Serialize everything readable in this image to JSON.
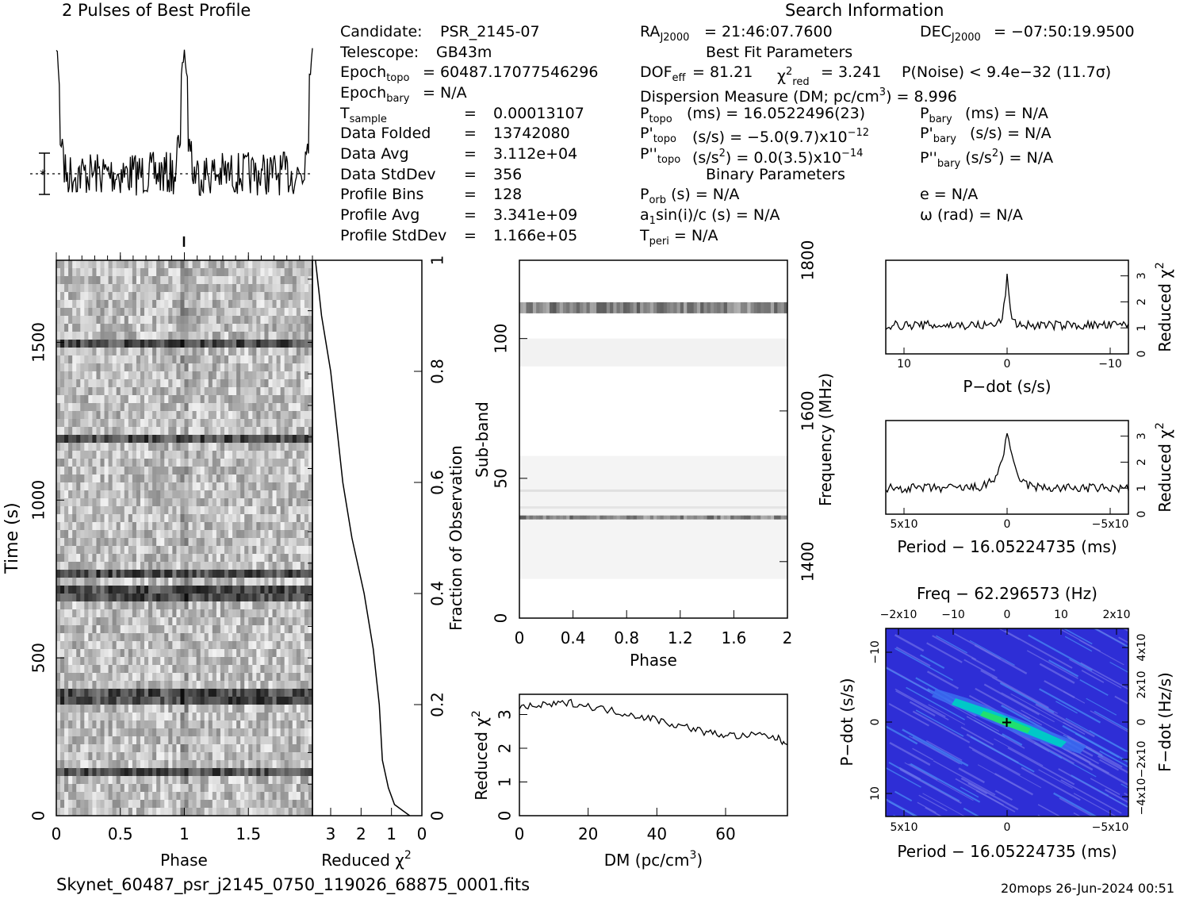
{
  "title_profile": "2 Pulses of Best Profile",
  "title_search": "Search Information",
  "left_info": [
    {
      "k": "Candidate:",
      "v": "PSR_2145-07"
    },
    {
      "k": "Telescope:",
      "v": "GB43m"
    },
    {
      "k": "Epoch_topo",
      "v": "= 60487.17077546296"
    },
    {
      "k": "Epoch_bary",
      "v": "= N/A"
    },
    {
      "k": "T_sample",
      "v": "0.00013107"
    },
    {
      "k": "Data Folded",
      "v": "13742080"
    },
    {
      "k": "Data Avg",
      "v": "3.112e+04"
    },
    {
      "k": "Data StdDev",
      "v": "356"
    },
    {
      "k": "Profile Bins",
      "v": "128"
    },
    {
      "k": "Profile Avg",
      "v": "3.341e+09"
    },
    {
      "k": "Profile StdDev",
      "v": "1.166e+05"
    }
  ],
  "search": {
    "ra": "= 21:46:07.7600",
    "dec": "= −07:50:19.9500",
    "best_fit_header": "Best Fit Parameters",
    "dof": "= 81.21",
    "chi2_red": "= 3.241",
    "pnoise": "P(Noise) < 9.4e−32   (11.7σ)",
    "dm": "Dispersion Measure (DM; pc/cm",
    "dm_value": ") = 8.996",
    "ptopo": "(ms) =  16.0522496(23)",
    "pbary": "(ms) = N/A",
    "pdtopo": "(s/s) = −5.0(9.7)x10",
    "pdtopo_exp": "−12",
    "pdbary": "(s/s) = N/A",
    "pddtopo": "(s/s",
    "pddtopo_val": ") = 0.0(3.5)x10",
    "pddtopo_exp": "−14",
    "pddbary": ") = N/A",
    "binary_header": "Binary Parameters",
    "porb": "(s) = N/A",
    "e": "e = N/A",
    "a1": "sin(i)/c (s) = N/A",
    "omega": "ω (rad) = N/A",
    "tperi": "= N/A"
  },
  "footer_file": "Skynet_60487_psr_j2145_0750_119026_68875_0001.fits",
  "footer_stamp": "20mops 26-Jun-2024 00:51",
  "chart_data": [
    {
      "type": "line",
      "name": "profile",
      "title": "2 Pulses of Best Profile",
      "x_range": [
        0,
        2
      ],
      "note_peaks_at_phase": [
        0.0,
        1.0,
        2.0
      ]
    },
    {
      "type": "heatmap",
      "name": "time-phase",
      "xlabel": "Phase",
      "ylabel": "Time (s)",
      "xlim": [
        0,
        2
      ],
      "ylim": [
        0,
        1760
      ],
      "xticks": [
        "0",
        "0.5",
        "1",
        "1.5"
      ],
      "yticks": [
        "0",
        "500",
        "1000",
        "1500"
      ],
      "dark_rows_time_s": [
        1200,
        1490,
        700,
        770,
        380,
        140
      ]
    },
    {
      "type": "line",
      "name": "reduced-chi2-vs-fraction",
      "xlabel": "Reduced χ2",
      "ylabel": "Fraction of Observation",
      "xticks": [
        "3",
        "2",
        "1",
        "0"
      ],
      "yticks": [
        "0",
        "0.2",
        "0.4",
        "0.6",
        "0.8",
        "1"
      ],
      "fraction": [
        0.0,
        0.02,
        0.05,
        0.1,
        0.2,
        0.3,
        0.4,
        0.5,
        0.6,
        0.7,
        0.8,
        0.9,
        0.95,
        1.0
      ],
      "chi2": [
        0.4,
        0.9,
        1.1,
        1.3,
        1.4,
        1.6,
        1.9,
        2.3,
        2.6,
        2.8,
        3.0,
        3.3,
        3.4,
        3.5
      ]
    },
    {
      "type": "heatmap",
      "name": "subband-phase",
      "xlabel": "Phase",
      "ylabel": "Sub-band",
      "y2label": "Frequency (MHz)",
      "xticks": [
        "0",
        "0.4",
        "0.8",
        "1.2",
        "1.6",
        "2"
      ],
      "yticks": [
        "0",
        "50",
        "100"
      ],
      "y2ticks": [
        "1400",
        "1600",
        "1800"
      ],
      "dark_bands_subband": [
        111,
        36
      ]
    },
    {
      "type": "line",
      "name": "reduced-chi2-vs-dm",
      "xlabel": "DM (pc/cm3)",
      "ylabel": "Reduced χ2",
      "xlim": [
        0,
        78
      ],
      "ylim": [
        0,
        3.6
      ],
      "xticks": [
        "0",
        "20",
        "40",
        "60"
      ],
      "yticks": [
        "0",
        "1",
        "2",
        "3"
      ],
      "x": [
        0,
        5,
        10,
        15,
        20,
        25,
        30,
        35,
        40,
        45,
        50,
        55,
        60,
        65,
        70,
        75,
        78
      ],
      "y": [
        3.2,
        3.25,
        3.3,
        3.35,
        3.25,
        3.15,
        3.05,
        2.95,
        2.85,
        2.7,
        2.6,
        2.45,
        2.4,
        2.35,
        2.4,
        2.3,
        2.1
      ]
    },
    {
      "type": "line",
      "name": "reduced-chi2-vs-pdot",
      "xlabel": "P−dot (s/s)",
      "ylabel": "Reduced χ2",
      "ylim": [
        0,
        3.6
      ],
      "xticks": [
        "10",
        "0",
        "−10"
      ],
      "yticks": [
        "0",
        "1",
        "2",
        "3"
      ],
      "peak": 3.1,
      "baseline": 1.1
    },
    {
      "type": "line",
      "name": "reduced-chi2-vs-period",
      "xlabel": "Period − 16.05224735 (ms)",
      "ylabel": "Reduced χ2",
      "ylim": [
        0,
        3.6
      ],
      "xticks": [
        "5x10",
        "0",
        "−5x10"
      ],
      "yticks": [
        "0",
        "1",
        "2",
        "3"
      ],
      "peak": 3.2,
      "baseline": 1.0
    },
    {
      "type": "heatmap",
      "name": "pdot-period-plane",
      "title": "Freq − 62.296573 (Hz)",
      "xlabel": "Period − 16.05224735 (ms)",
      "ylabel": "P−dot (s/s)",
      "y2label": "F−dot (Hz/s)",
      "top_ticks": [
        "−2x10",
        "−10",
        "0",
        "10",
        "2x10"
      ],
      "bottom_ticks": [
        "5x10",
        "0",
        "−5x10"
      ],
      "left_ticks": [
        "−10",
        "0",
        "10"
      ],
      "right_ticks": [
        "4x10",
        "2x10",
        "0",
        "−2x10",
        "−4x10"
      ],
      "colors": [
        "#2828d8",
        "#3a6cf0",
        "#00c8c8",
        "#20e070"
      ]
    }
  ]
}
